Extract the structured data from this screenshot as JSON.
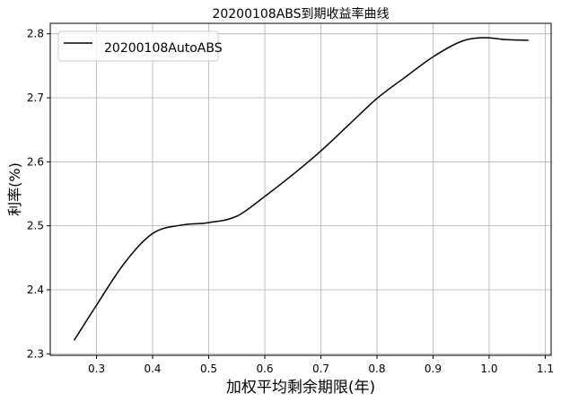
{
  "chart_data": {
    "type": "line",
    "title": "20200108ABS到期收益率曲线",
    "xlabel": "加权平均剩余期限(年)",
    "ylabel": "利率(%)",
    "xlim": [
      0.2175,
      1.1105
    ],
    "ylim": [
      2.2976,
      2.8164
    ],
    "xticks": [
      0.3,
      0.4,
      0.5,
      0.6,
      0.7,
      0.8,
      0.9,
      1.0,
      1.1
    ],
    "xtick_labels": [
      "0.3",
      "0.4",
      "0.5",
      "0.6",
      "0.7",
      "0.8",
      "0.9",
      "1.0",
      "1.1"
    ],
    "yticks": [
      2.3,
      2.4,
      2.5,
      2.6,
      2.7,
      2.8
    ],
    "ytick_labels": [
      "2.3",
      "2.4",
      "2.5",
      "2.6",
      "2.7",
      "2.8"
    ],
    "grid": true,
    "legend_position": "top-left",
    "series": [
      {
        "name": "20200108AutoABS",
        "color": "#000000",
        "x": [
          0.26,
          0.3,
          0.35,
          0.4,
          0.45,
          0.5,
          0.55,
          0.6,
          0.65,
          0.7,
          0.75,
          0.8,
          0.85,
          0.9,
          0.95,
          0.99,
          1.03,
          1.07
        ],
        "y": [
          2.321,
          2.376,
          2.442,
          2.488,
          2.501,
          2.505,
          2.515,
          2.546,
          2.58,
          2.617,
          2.658,
          2.699,
          2.732,
          2.764,
          2.788,
          2.794,
          2.791,
          2.79
        ]
      }
    ]
  }
}
